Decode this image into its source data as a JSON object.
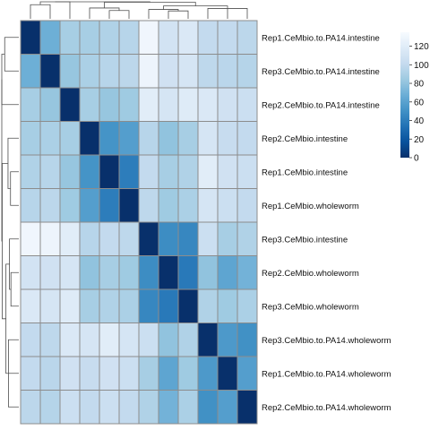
{
  "chart_data": {
    "type": "heatmap",
    "title": "",
    "rows": [
      "Rep1.CeMbio.to.PA14.intestine",
      "Rep3.CeMbio.to.PA14.intestine",
      "Rep2.CeMbio.to.PA14.intestine",
      "Rep2.CeMbio.intestine",
      "Rep1.CeMbio.intestine",
      "Rep1.CeMbio.wholeworm",
      "Rep3.CeMbio.intestine",
      "Rep2.CeMbio.wholeworm",
      "Rep3.CeMbio.wholeworm",
      "Rep3.CeMbio.to.PA14.wholeworm",
      "Rep1.CeMbio.to.PA14.wholeworm",
      "Rep2.CeMbio.to.PA14.wholeworm"
    ],
    "matrix": [
      [
        0,
        68,
        88,
        88,
        92,
        95,
        130,
        110,
        115,
        100,
        100,
        97
      ],
      [
        68,
        0,
        82,
        90,
        95,
        97,
        128,
        108,
        112,
        98,
        96,
        94
      ],
      [
        88,
        82,
        0,
        88,
        82,
        85,
        120,
        112,
        118,
        115,
        108,
        105
      ],
      [
        88,
        90,
        88,
        0,
        52,
        58,
        95,
        80,
        88,
        112,
        102,
        100
      ],
      [
        92,
        95,
        82,
        52,
        0,
        40,
        100,
        88,
        92,
        120,
        108,
        105
      ],
      [
        95,
        97,
        85,
        58,
        40,
        0,
        98,
        85,
        90,
        112,
        105,
        100
      ],
      [
        130,
        128,
        120,
        95,
        100,
        98,
        0,
        48,
        45,
        105,
        88,
        92
      ],
      [
        110,
        108,
        112,
        80,
        88,
        85,
        48,
        0,
        38,
        80,
        62,
        70
      ],
      [
        115,
        112,
        118,
        88,
        92,
        90,
        45,
        38,
        0,
        92,
        85,
        90
      ],
      [
        100,
        98,
        115,
        112,
        120,
        112,
        105,
        80,
        92,
        0,
        55,
        50
      ],
      [
        100,
        96,
        108,
        102,
        108,
        105,
        88,
        62,
        85,
        55,
        0,
        58
      ],
      [
        97,
        94,
        105,
        100,
        105,
        100,
        92,
        70,
        90,
        50,
        58,
        0
      ]
    ],
    "legend": {
      "ticks": [
        0,
        20,
        40,
        60,
        80,
        100,
        120
      ],
      "range": [
        0,
        135
      ],
      "placement": "right"
    },
    "colors": {
      "scale": [
        "#08306b",
        "#08519c",
        "#2171b5",
        "#4292c6",
        "#6baed6",
        "#9ecae1",
        "#c6dbef",
        "#deebf7",
        "#f7fbff"
      ],
      "cell_border": "#8c8c8c",
      "dendrogram": "#4d4d4d"
    }
  }
}
